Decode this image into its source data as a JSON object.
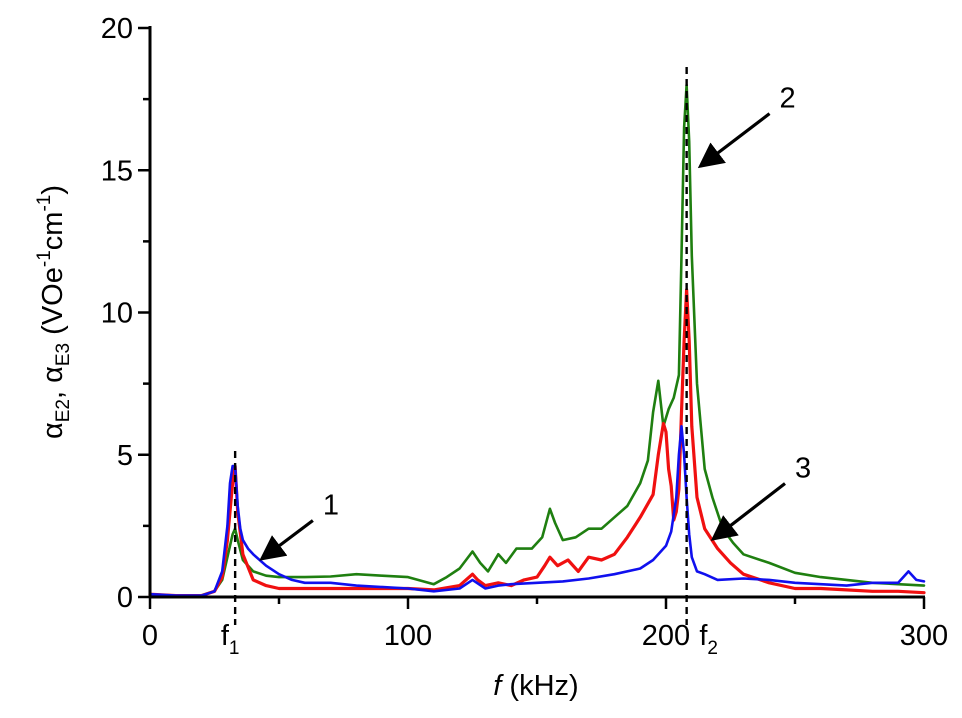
{
  "chart_data": {
    "type": "line",
    "xlabel": {
      "italic": "f",
      "rest": " (kHz)"
    },
    "ylabel": {
      "sym1": "α",
      "sub1": "E2",
      "sep": ", ",
      "sym2": "α",
      "sub2": "E3",
      "unit_a": " (VOe",
      "sup_a": "-1",
      "unit_b": "cm",
      "sup_b": "-1",
      "unit_c": ")"
    },
    "xlim": [
      0,
      300
    ],
    "ylim": [
      0,
      20
    ],
    "xticks": [
      0,
      100,
      200,
      300
    ],
    "xtick_labels": [
      "0",
      "100",
      "200",
      "300"
    ],
    "yticks": [
      0,
      5,
      10,
      15,
      20
    ],
    "ytick_labels": [
      "0",
      "5",
      "10",
      "15",
      "20"
    ],
    "x_minor_step": 50,
    "y_minor_step": 2.5,
    "markers": [
      {
        "x": 33,
        "label": "f",
        "sub": "1"
      },
      {
        "x": 208,
        "label": "f",
        "sub": "2"
      }
    ],
    "annotations": [
      {
        "text": "1",
        "point_to": [
          41,
          1.2
        ],
        "text_at": [
          67,
          2.9
        ]
      },
      {
        "text": "2",
        "point_to": [
          211,
          15.0
        ],
        "text_at": [
          244,
          17.2
        ]
      },
      {
        "text": "3",
        "point_to": [
          216,
          1.9
        ],
        "text_at": [
          250,
          4.2
        ]
      }
    ],
    "series": [
      {
        "name": "green",
        "color": "#1f7f10",
        "x": [
          0,
          10,
          20,
          25,
          28,
          30,
          32,
          33,
          34,
          36,
          40,
          45,
          50,
          60,
          70,
          80,
          90,
          100,
          110,
          115,
          120,
          125,
          128,
          131,
          135,
          138,
          142,
          148,
          152,
          155,
          157,
          160,
          165,
          170,
          175,
          180,
          185,
          190,
          193,
          195,
          197,
          199,
          201,
          203,
          205,
          206,
          207,
          208,
          209,
          210,
          212,
          215,
          218,
          222,
          226,
          230,
          240,
          250,
          260,
          270,
          280,
          290,
          300
        ],
        "y": [
          0.08,
          0.05,
          0.06,
          0.2,
          0.6,
          1.4,
          2.2,
          2.4,
          2.0,
          1.3,
          0.9,
          0.75,
          0.7,
          0.7,
          0.72,
          0.8,
          0.75,
          0.7,
          0.45,
          0.7,
          1.0,
          1.6,
          1.2,
          0.9,
          1.5,
          1.2,
          1.7,
          1.7,
          2.1,
          3.1,
          2.6,
          2.0,
          2.1,
          2.4,
          2.4,
          2.8,
          3.2,
          4.0,
          4.8,
          6.5,
          7.6,
          6.0,
          6.6,
          7.0,
          7.8,
          12.0,
          16.5,
          18.0,
          16.0,
          12.0,
          7.5,
          4.5,
          3.5,
          2.4,
          1.9,
          1.5,
          1.2,
          0.85,
          0.7,
          0.6,
          0.5,
          0.45,
          0.4
        ]
      },
      {
        "name": "red",
        "color": "#f01010",
        "x": [
          0,
          10,
          20,
          25,
          28,
          30,
          31,
          32,
          33,
          34,
          36,
          40,
          45,
          50,
          60,
          80,
          100,
          110,
          120,
          125,
          127,
          130,
          135,
          140,
          145,
          150,
          153,
          155,
          158,
          162,
          166,
          170,
          175,
          180,
          185,
          190,
          195,
          197,
          199,
          200,
          201,
          202,
          203,
          204,
          205,
          206,
          207,
          208,
          209,
          210,
          212,
          215,
          220,
          225,
          230,
          240,
          250,
          260,
          270,
          280,
          290,
          300
        ],
        "y": [
          0.1,
          0.05,
          0.05,
          0.2,
          0.7,
          2.0,
          3.0,
          4.0,
          4.6,
          3.0,
          1.5,
          0.6,
          0.4,
          0.3,
          0.3,
          0.3,
          0.3,
          0.25,
          0.4,
          0.8,
          0.6,
          0.4,
          0.5,
          0.4,
          0.6,
          0.7,
          1.1,
          1.4,
          1.1,
          1.3,
          0.9,
          1.4,
          1.3,
          1.5,
          2.1,
          2.8,
          3.6,
          5.0,
          6.1,
          5.8,
          4.5,
          3.9,
          2.7,
          3.0,
          3.8,
          6.5,
          9.0,
          10.8,
          9.0,
          6.0,
          3.5,
          2.4,
          1.7,
          1.2,
          0.8,
          0.5,
          0.3,
          0.3,
          0.25,
          0.2,
          0.2,
          0.15
        ]
      },
      {
        "name": "blue",
        "color": "#1010ee",
        "x": [
          0,
          10,
          20,
          25,
          28,
          30,
          31,
          32,
          33,
          34,
          35,
          36,
          38,
          40,
          45,
          50,
          55,
          60,
          70,
          80,
          100,
          110,
          120,
          125,
          130,
          135,
          140,
          150,
          160,
          170,
          180,
          190,
          195,
          200,
          202,
          204,
          205,
          206,
          207,
          208,
          209,
          210,
          212,
          215,
          220,
          230,
          240,
          250,
          260,
          270,
          280,
          290,
          294,
          297,
          300
        ],
        "y": [
          0.1,
          0.05,
          0.05,
          0.2,
          0.9,
          2.5,
          4.0,
          4.6,
          4.6,
          3.2,
          2.4,
          2.0,
          1.7,
          1.5,
          1.1,
          0.8,
          0.6,
          0.5,
          0.5,
          0.4,
          0.3,
          0.2,
          0.3,
          0.6,
          0.3,
          0.4,
          0.45,
          0.5,
          0.55,
          0.65,
          0.8,
          1.0,
          1.3,
          1.8,
          2.3,
          3.5,
          5.0,
          6.0,
          5.0,
          3.5,
          2.2,
          1.4,
          0.9,
          0.8,
          0.6,
          0.65,
          0.6,
          0.5,
          0.45,
          0.4,
          0.5,
          0.5,
          0.9,
          0.6,
          0.55
        ]
      }
    ]
  }
}
